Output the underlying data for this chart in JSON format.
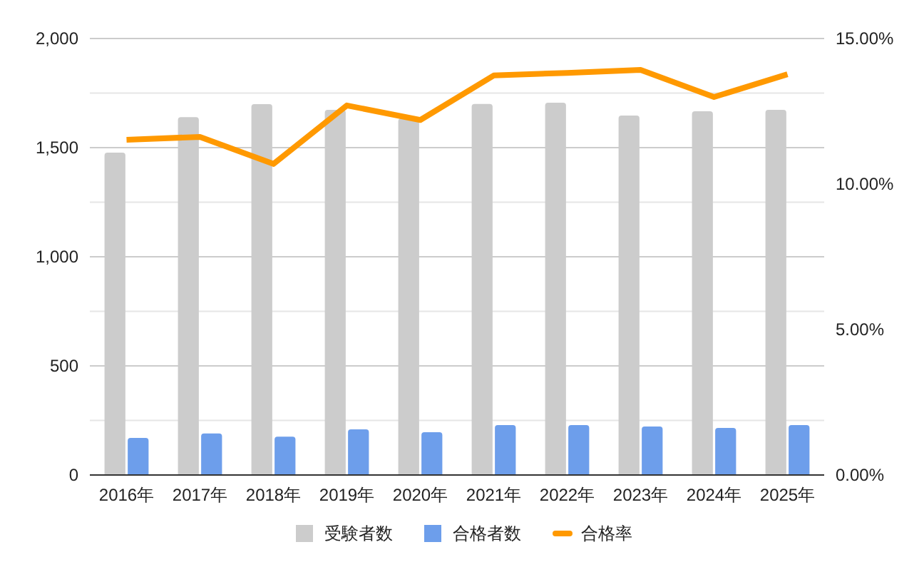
{
  "chart_data": {
    "type": "bar",
    "categories": [
      "2016年",
      "2017年",
      "2018年",
      "2019年",
      "2020年",
      "2021年",
      "2022年",
      "2023年",
      "2024年",
      "2025年"
    ],
    "series": [
      {
        "name": "受験者数",
        "color": "#cccccc",
        "values": [
          1477,
          1640,
          1699,
          1673,
          1634,
          1700,
          1706,
          1647,
          1667,
          1673
        ]
      },
      {
        "name": "合格者数",
        "color": "#6d9eeb",
        "values": [
          170,
          190,
          176,
          209,
          196,
          229,
          229,
          222,
          216,
          229
        ]
      },
      {
        "name": "合格率",
        "color": "#ff9900",
        "type": "line",
        "axis": "y2",
        "values": [
          11.52,
          11.62,
          10.69,
          12.7,
          12.2,
          13.73,
          13.82,
          13.92,
          12.99,
          13.77
        ]
      }
    ],
    "ylim": [
      0,
      2000
    ],
    "yticks": [
      0,
      {
        "value": 250,
        "label": null
      },
      {
        "value": 500,
        "label": "500"
      },
      {
        "value": 750,
        "label": null
      },
      {
        "value": 1000,
        "label": "1,000"
      },
      {
        "value": 1250,
        "label": null
      },
      {
        "value": 1500,
        "label": "1,500"
      },
      {
        "value": 1750,
        "label": null
      },
      {
        "value": 2000,
        "label": "2,000"
      }
    ],
    "y2lim": [
      0,
      15
    ],
    "y2ticks": [
      {
        "value": 0,
        "label": "0.00%"
      },
      {
        "value": 5,
        "label": "5.00%"
      },
      {
        "value": 10,
        "label": "10.00%"
      },
      {
        "value": 15,
        "label": "15.00%"
      }
    ],
    "grid": "y",
    "legend": "bottom",
    "marker": "none"
  }
}
